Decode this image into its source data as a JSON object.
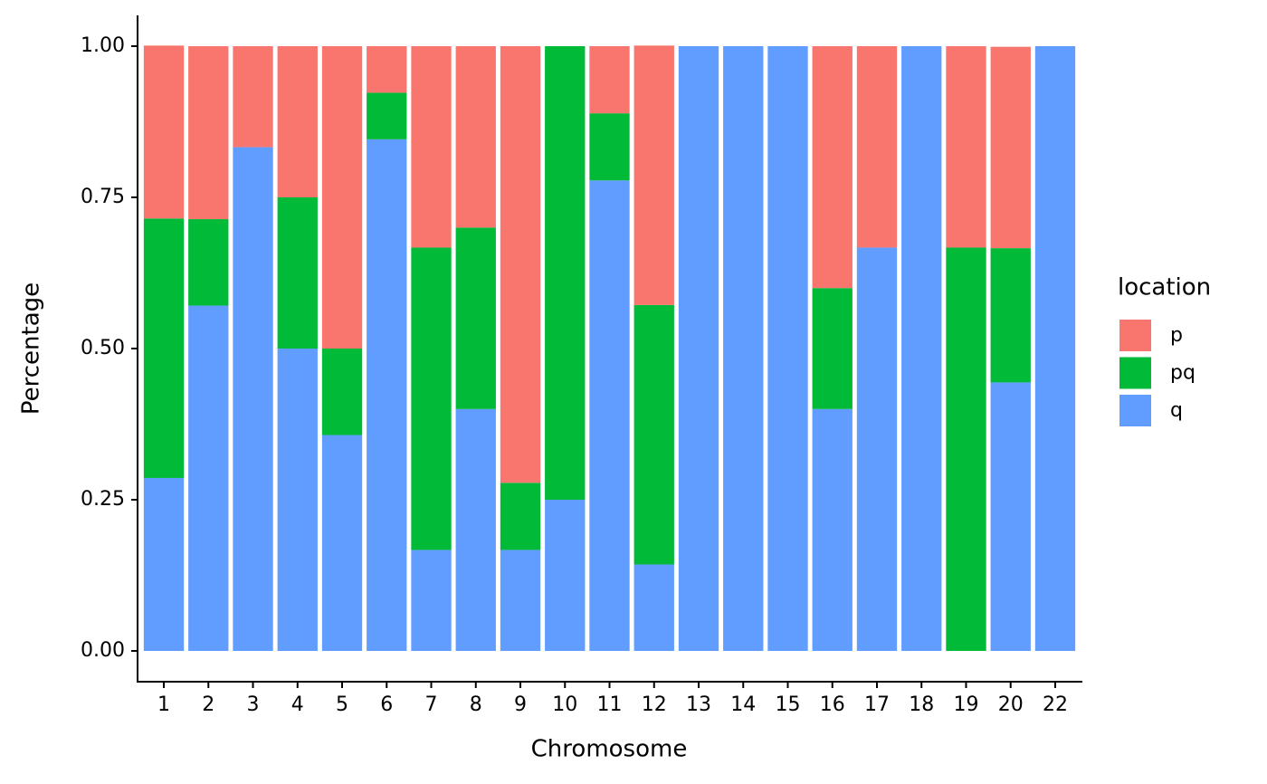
{
  "chart_data": {
    "type": "stacked_bar",
    "x_label": "Chromosome",
    "y_label": "Percentage",
    "categories": [
      "1",
      "2",
      "3",
      "4",
      "5",
      "6",
      "7",
      "8",
      "9",
      "10",
      "11",
      "12",
      "13",
      "14",
      "15",
      "16",
      "17",
      "18",
      "19",
      "20",
      "22"
    ],
    "series": [
      {
        "name": "p",
        "color": "#F8766D",
        "values": [
          0.286,
          0.286,
          0.167,
          0.25,
          0.5,
          0.077,
          0.333,
          0.3,
          0.722,
          0,
          0.111,
          0.429,
          0,
          0,
          0,
          0.4,
          0.333,
          0,
          0.333,
          0.333,
          0
        ]
      },
      {
        "name": "pq",
        "color": "#00BA38",
        "values": [
          0.429,
          0.143,
          0,
          0.25,
          0.143,
          0.077,
          0.5,
          0.3,
          0.111,
          0.75,
          0.111,
          0.429,
          0,
          0,
          0,
          0.2,
          0,
          0,
          0.667,
          0.222,
          0
        ]
      },
      {
        "name": "q",
        "color": "#619CFF",
        "values": [
          0.286,
          0.571,
          0.833,
          0.5,
          0.357,
          0.846,
          0.167,
          0.4,
          0.167,
          0.25,
          0.778,
          0.143,
          1,
          1,
          1,
          0.4,
          0.667,
          1,
          0,
          0.444,
          1
        ]
      }
    ],
    "legend_title": "location",
    "legend": "right",
    "ylim": [
      -0.05,
      1.05
    ],
    "yticks": [
      {
        "value": 0,
        "label": "0.00"
      },
      {
        "value": 0.25,
        "label": "0.25"
      },
      {
        "value": 0.5,
        "label": "0.50"
      },
      {
        "value": 0.75,
        "label": "0.75"
      },
      {
        "value": 1,
        "label": "1.00"
      }
    ]
  }
}
